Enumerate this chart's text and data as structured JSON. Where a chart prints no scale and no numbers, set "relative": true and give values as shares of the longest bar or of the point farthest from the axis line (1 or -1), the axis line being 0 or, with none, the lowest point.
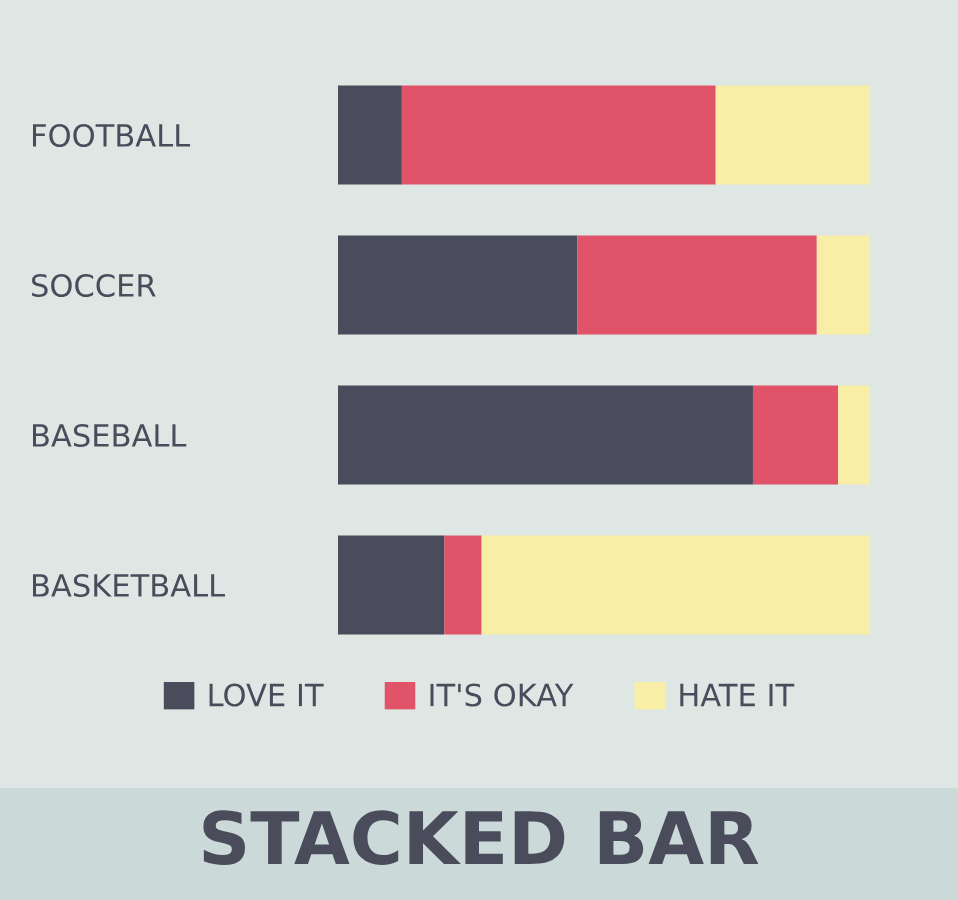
{
  "chart_data": {
    "type": "bar",
    "title": "STACKED BAR",
    "orientation": "horizontal",
    "stacked": true,
    "relative": true,
    "legend": "bottom",
    "grid": false,
    "categories": [
      "FOOTBALL",
      "SOCCER",
      "BASEBALL",
      "BASKETBALL"
    ],
    "series": [
      {
        "name": "LOVE IT",
        "color": "#4a4c5c",
        "values": [
          0.12,
          0.45,
          0.78,
          0.2
        ]
      },
      {
        "name": "IT'S OKAY",
        "color": "#e05368",
        "values": [
          0.59,
          0.45,
          0.16,
          0.07
        ]
      },
      {
        "name": "HATE IT",
        "color": "#f9eea6",
        "values": [
          0.29,
          0.1,
          0.06,
          0.73
        ]
      }
    ]
  }
}
